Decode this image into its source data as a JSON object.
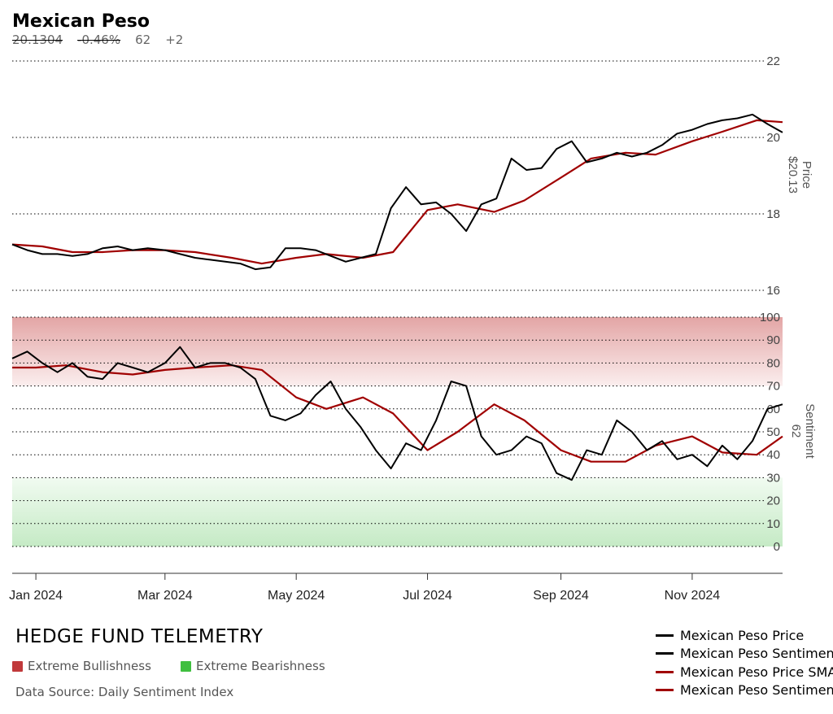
{
  "header": {
    "title": "Mexican Peso",
    "price": "20.1304",
    "change": "-0.46%",
    "sentiment": "62",
    "sentiment_change": "+2"
  },
  "footer": {
    "brand": "HEDGE FUND TELEMETRY",
    "extreme_bull_label": "Extreme Bullishness",
    "extreme_bear_label": "Extreme Bearishness",
    "source": "Data Source: Daily Sentiment Index"
  },
  "colors": {
    "price_line": "#000000",
    "sma_line": "#a00000",
    "bull_zone": "#d9534f",
    "bear_zone": "#3fbf3f"
  },
  "chart_data": [
    {
      "type": "line",
      "panel": "price",
      "ylabel": "Price",
      "last_value_label": "$20.13",
      "yticks": [
        16,
        18,
        20,
        22
      ],
      "ylim": [
        16,
        22
      ],
      "grid": true,
      "x_range": [
        "2023-12-21",
        "2024-12-13"
      ],
      "x_ticks": [
        "Jan 2024",
        "Mar 2024",
        "May 2024",
        "Jul 2024",
        "Sep 2024",
        "Nov 2024"
      ],
      "series": [
        {
          "name": "Mexican Peso Price",
          "points": [
            [
              "2023-12-21",
              17.2
            ],
            [
              "2023-12-28",
              17.05
            ],
            [
              "2024-01-04",
              16.95
            ],
            [
              "2024-01-11",
              16.95
            ],
            [
              "2024-01-18",
              16.9
            ],
            [
              "2024-01-25",
              16.95
            ],
            [
              "2024-02-01",
              17.1
            ],
            [
              "2024-02-08",
              17.15
            ],
            [
              "2024-02-15",
              17.05
            ],
            [
              "2024-02-22",
              17.1
            ],
            [
              "2024-03-01",
              17.05
            ],
            [
              "2024-03-08",
              16.95
            ],
            [
              "2024-03-15",
              16.85
            ],
            [
              "2024-03-22",
              16.8
            ],
            [
              "2024-03-29",
              16.75
            ],
            [
              "2024-04-05",
              16.7
            ],
            [
              "2024-04-12",
              16.55
            ],
            [
              "2024-04-19",
              16.6
            ],
            [
              "2024-04-26",
              17.1
            ],
            [
              "2024-05-03",
              17.1
            ],
            [
              "2024-05-10",
              17.05
            ],
            [
              "2024-05-17",
              16.9
            ],
            [
              "2024-05-24",
              16.75
            ],
            [
              "2024-05-31",
              16.85
            ],
            [
              "2024-06-07",
              16.95
            ],
            [
              "2024-06-14",
              18.15
            ],
            [
              "2024-06-21",
              18.7
            ],
            [
              "2024-06-28",
              18.25
            ],
            [
              "2024-07-05",
              18.3
            ],
            [
              "2024-07-12",
              18.0
            ],
            [
              "2024-07-19",
              17.55
            ],
            [
              "2024-07-26",
              18.25
            ],
            [
              "2024-08-02",
              18.4
            ],
            [
              "2024-08-09",
              19.45
            ],
            [
              "2024-08-16",
              19.15
            ],
            [
              "2024-08-23",
              19.2
            ],
            [
              "2024-08-30",
              19.7
            ],
            [
              "2024-09-06",
              19.9
            ],
            [
              "2024-09-13",
              19.35
            ],
            [
              "2024-09-20",
              19.45
            ],
            [
              "2024-09-27",
              19.6
            ],
            [
              "2024-10-04",
              19.5
            ],
            [
              "2024-10-11",
              19.6
            ],
            [
              "2024-10-18",
              19.8
            ],
            [
              "2024-10-25",
              20.1
            ],
            [
              "2024-11-01",
              20.2
            ],
            [
              "2024-11-08",
              20.35
            ],
            [
              "2024-11-15",
              20.45
            ],
            [
              "2024-11-22",
              20.5
            ],
            [
              "2024-11-29",
              20.6
            ],
            [
              "2024-12-06",
              20.35
            ],
            [
              "2024-12-13",
              20.13
            ]
          ]
        },
        {
          "name": "Mexican Peso Price SMA",
          "points": [
            [
              "2023-12-21",
              17.2
            ],
            [
              "2024-01-04",
              17.15
            ],
            [
              "2024-01-18",
              17.0
            ],
            [
              "2024-02-01",
              17.0
            ],
            [
              "2024-02-15",
              17.05
            ],
            [
              "2024-03-01",
              17.05
            ],
            [
              "2024-03-15",
              17.0
            ],
            [
              "2024-04-01",
              16.85
            ],
            [
              "2024-04-15",
              16.7
            ],
            [
              "2024-05-01",
              16.85
            ],
            [
              "2024-05-15",
              16.95
            ],
            [
              "2024-06-01",
              16.85
            ],
            [
              "2024-06-15",
              17.0
            ],
            [
              "2024-07-01",
              18.1
            ],
            [
              "2024-07-15",
              18.25
            ],
            [
              "2024-08-01",
              18.05
            ],
            [
              "2024-08-15",
              18.35
            ],
            [
              "2024-09-01",
              18.95
            ],
            [
              "2024-09-15",
              19.45
            ],
            [
              "2024-10-01",
              19.6
            ],
            [
              "2024-10-15",
              19.55
            ],
            [
              "2024-11-01",
              19.9
            ],
            [
              "2024-11-15",
              20.15
            ],
            [
              "2024-12-01",
              20.45
            ],
            [
              "2024-12-13",
              20.4
            ]
          ]
        }
      ]
    },
    {
      "type": "line",
      "panel": "sentiment",
      "ylabel": "Sentiment",
      "last_value_label": "62",
      "yticks": [
        0,
        10,
        20,
        30,
        40,
        50,
        60,
        70,
        80,
        90,
        100
      ],
      "ylim": [
        0,
        100
      ],
      "grid": true,
      "zones": [
        {
          "name": "Extreme Bullishness",
          "from": 70,
          "to": 100
        },
        {
          "name": "Extreme Bearishness",
          "from": 0,
          "to": 30
        }
      ],
      "series": [
        {
          "name": "Mexican Peso Sentiment",
          "points": [
            [
              "2023-12-21",
              82
            ],
            [
              "2023-12-28",
              85
            ],
            [
              "2024-01-04",
              80
            ],
            [
              "2024-01-11",
              76
            ],
            [
              "2024-01-18",
              80
            ],
            [
              "2024-01-25",
              74
            ],
            [
              "2024-02-01",
              73
            ],
            [
              "2024-02-08",
              80
            ],
            [
              "2024-02-15",
              78
            ],
            [
              "2024-02-22",
              76
            ],
            [
              "2024-03-01",
              80
            ],
            [
              "2024-03-08",
              87
            ],
            [
              "2024-03-15",
              78
            ],
            [
              "2024-03-22",
              80
            ],
            [
              "2024-03-29",
              80
            ],
            [
              "2024-04-05",
              78
            ],
            [
              "2024-04-12",
              73
            ],
            [
              "2024-04-19",
              57
            ],
            [
              "2024-04-26",
              55
            ],
            [
              "2024-05-03",
              58
            ],
            [
              "2024-05-10",
              66
            ],
            [
              "2024-05-17",
              72
            ],
            [
              "2024-05-24",
              60
            ],
            [
              "2024-05-31",
              52
            ],
            [
              "2024-06-07",
              42
            ],
            [
              "2024-06-14",
              34
            ],
            [
              "2024-06-21",
              45
            ],
            [
              "2024-06-28",
              42
            ],
            [
              "2024-07-05",
              55
            ],
            [
              "2024-07-12",
              72
            ],
            [
              "2024-07-19",
              70
            ],
            [
              "2024-07-26",
              48
            ],
            [
              "2024-08-02",
              40
            ],
            [
              "2024-08-09",
              42
            ],
            [
              "2024-08-16",
              48
            ],
            [
              "2024-08-23",
              45
            ],
            [
              "2024-08-30",
              32
            ],
            [
              "2024-09-06",
              29
            ],
            [
              "2024-09-13",
              42
            ],
            [
              "2024-09-20",
              40
            ],
            [
              "2024-09-27",
              55
            ],
            [
              "2024-10-04",
              50
            ],
            [
              "2024-10-11",
              42
            ],
            [
              "2024-10-18",
              46
            ],
            [
              "2024-10-25",
              38
            ],
            [
              "2024-11-01",
              40
            ],
            [
              "2024-11-08",
              35
            ],
            [
              "2024-11-15",
              44
            ],
            [
              "2024-11-22",
              38
            ],
            [
              "2024-11-29",
              46
            ],
            [
              "2024-12-06",
              60
            ],
            [
              "2024-12-13",
              62
            ]
          ]
        },
        {
          "name": "Mexican Peso Sentiment SMA",
          "points": [
            [
              "2023-12-21",
              78
            ],
            [
              "2024-01-01",
              78
            ],
            [
              "2024-01-15",
              79
            ],
            [
              "2024-02-01",
              76
            ],
            [
              "2024-02-15",
              75
            ],
            [
              "2024-03-01",
              77
            ],
            [
              "2024-03-15",
              78
            ],
            [
              "2024-04-01",
              79
            ],
            [
              "2024-04-15",
              77
            ],
            [
              "2024-05-01",
              65
            ],
            [
              "2024-05-15",
              60
            ],
            [
              "2024-06-01",
              65
            ],
            [
              "2024-06-15",
              58
            ],
            [
              "2024-07-01",
              42
            ],
            [
              "2024-07-15",
              50
            ],
            [
              "2024-08-01",
              62
            ],
            [
              "2024-08-15",
              55
            ],
            [
              "2024-09-01",
              42
            ],
            [
              "2024-09-15",
              37
            ],
            [
              "2024-10-01",
              37
            ],
            [
              "2024-10-15",
              44
            ],
            [
              "2024-11-01",
              48
            ],
            [
              "2024-11-15",
              41
            ],
            [
              "2024-12-01",
              40
            ],
            [
              "2024-12-13",
              48
            ]
          ]
        }
      ]
    }
  ]
}
